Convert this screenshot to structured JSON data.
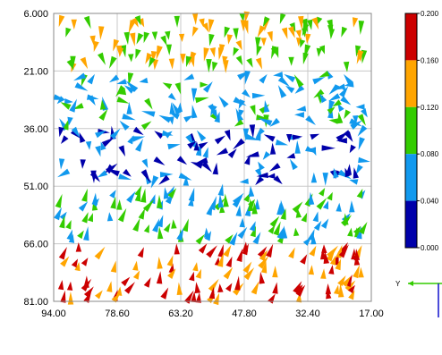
{
  "chart_data": {
    "type": "vector_field",
    "x_ticks": [
      "94.00",
      "78.60",
      "63.20",
      "47.80",
      "32.40",
      "17.00"
    ],
    "y_ticks": [
      "6.000",
      "21.00",
      "36.00",
      "51.00",
      "66.00",
      "81.00"
    ],
    "xlim": [
      94,
      17
    ],
    "ylim": [
      6,
      81
    ],
    "grid": true,
    "colorbar": {
      "ticks": [
        "0.200",
        "0.160",
        "0.120",
        "0.080",
        "0.040",
        "0.000"
      ],
      "range": [
        0,
        0.2
      ],
      "colors": [
        "#cc0000",
        "#ffa500",
        "#33cc00",
        "#1199ee",
        "#0000aa"
      ],
      "placement": "right"
    },
    "magnitude_bands": [
      {
        "y_range": [
          6,
          21
        ],
        "magnitude": 0.12,
        "direction": "down"
      },
      {
        "y_range": [
          21,
          36
        ],
        "magnitude": 0.07,
        "direction": "mixed"
      },
      {
        "y_range": [
          36,
          51
        ],
        "magnitude": 0.03,
        "direction": "mixed"
      },
      {
        "y_range": [
          51,
          66
        ],
        "magnitude": 0.08,
        "direction": "up"
      },
      {
        "y_range": [
          66,
          81
        ],
        "magnitude": 0.16,
        "direction": "up"
      }
    ],
    "axis_triad": {
      "horizontal_label": "Y",
      "vertical_label": ""
    }
  }
}
